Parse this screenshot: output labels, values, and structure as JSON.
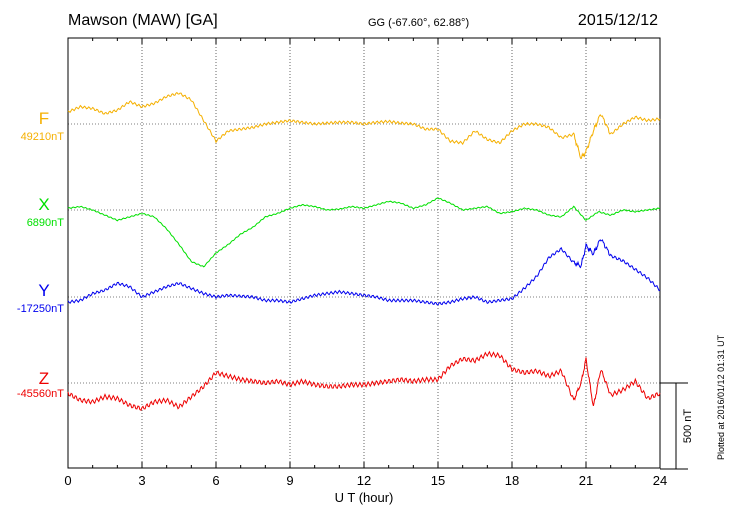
{
  "header": {
    "station": "Mawson (MAW)  [GA]",
    "coords": "GG (-67.60°,  62.88°)",
    "date": "2015/12/12"
  },
  "footer": {
    "plotted": "Plotted at 2016/01/12 01:31  UT"
  },
  "chart_data": {
    "type": "line",
    "xlabel": "U T (hour)",
    "xlim": [
      0,
      24
    ],
    "xticks": [
      0,
      3,
      6,
      9,
      12,
      15,
      18,
      21,
      24
    ],
    "scale_bar": {
      "label": "500 nT",
      "value": 500
    },
    "colors": {
      "F": "#f5b000",
      "X": "#00e000",
      "Y": "#0000ee",
      "Z": "#ee0000"
    },
    "series": [
      {
        "name": "F",
        "baseline_label": "49210nT",
        "baseline": 49210,
        "x": [
          0,
          0.5,
          1,
          1.5,
          2,
          2.5,
          3,
          3.5,
          4,
          4.5,
          5,
          5.5,
          6,
          6.5,
          7,
          7.5,
          8,
          8.5,
          9,
          9.5,
          10,
          10.5,
          11,
          11.5,
          12,
          12.5,
          13,
          13.5,
          14,
          14.5,
          15,
          15.5,
          16,
          16.5,
          17,
          17.5,
          18,
          18.5,
          19,
          19.5,
          20,
          20.5,
          20.8,
          21,
          21.3,
          21.6,
          22,
          22.5,
          23,
          23.5,
          24
        ],
        "y": [
          70,
          100,
          90,
          60,
          80,
          130,
          100,
          120,
          160,
          180,
          140,
          20,
          -100,
          -40,
          -30,
          -20,
          0,
          10,
          20,
          10,
          0,
          5,
          10,
          10,
          0,
          10,
          15,
          5,
          0,
          -30,
          -30,
          -100,
          -110,
          -40,
          -90,
          -110,
          -40,
          0,
          0,
          -20,
          -80,
          -60,
          -200,
          -160,
          -40,
          60,
          -60,
          0,
          40,
          20,
          30
        ]
      },
      {
        "name": "X",
        "baseline_label": "6890nT",
        "baseline": 6890,
        "x": [
          0,
          0.5,
          1,
          1.5,
          2,
          2.5,
          3,
          3.5,
          4,
          4.5,
          5,
          5.5,
          6,
          6.5,
          7,
          7.5,
          8,
          8.5,
          9,
          9.5,
          10,
          10.5,
          11,
          11.5,
          12,
          12.5,
          13,
          13.5,
          14,
          14.5,
          15,
          15.5,
          16,
          16.5,
          17,
          17.5,
          18,
          18.5,
          19,
          19.5,
          20,
          20.5,
          21,
          21.5,
          22,
          22.5,
          23,
          23.5,
          24
        ],
        "y": [
          10,
          20,
          0,
          -30,
          -60,
          -40,
          -20,
          -40,
          -110,
          -200,
          -300,
          -330,
          -250,
          -200,
          -140,
          -100,
          -40,
          -20,
          10,
          30,
          20,
          0,
          5,
          20,
          10,
          30,
          50,
          40,
          10,
          30,
          70,
          40,
          0,
          10,
          20,
          -20,
          -10,
          10,
          0,
          -30,
          -40,
          20,
          -60,
          -10,
          -30,
          0,
          -10,
          0,
          10
        ]
      },
      {
        "name": "Y",
        "baseline_label": "-17250nT",
        "baseline": -17250,
        "x": [
          0,
          0.5,
          1,
          1.5,
          2,
          2.5,
          3,
          3.5,
          4,
          4.5,
          5,
          5.5,
          6,
          6.5,
          7,
          7.5,
          8,
          8.5,
          9,
          9.5,
          10,
          10.5,
          11,
          11.5,
          12,
          12.5,
          13,
          13.5,
          14,
          14.5,
          15,
          15.5,
          16,
          16.5,
          17,
          17.5,
          18,
          18.5,
          19,
          19.5,
          20,
          20.5,
          20.8,
          21,
          21.3,
          21.6,
          22,
          22.5,
          23,
          23.5,
          24
        ],
        "y": [
          -30,
          -20,
          20,
          40,
          80,
          60,
          0,
          30,
          60,
          80,
          50,
          20,
          0,
          10,
          5,
          0,
          -20,
          -20,
          -30,
          -10,
          10,
          20,
          30,
          20,
          10,
          0,
          -20,
          -20,
          -20,
          -30,
          -40,
          -30,
          -10,
          0,
          -30,
          -20,
          -10,
          50,
          120,
          230,
          280,
          200,
          180,
          300,
          250,
          340,
          240,
          210,
          160,
          110,
          40
        ]
      },
      {
        "name": "Z",
        "baseline_label": "-45560nT",
        "baseline": -45560,
        "x": [
          0,
          0.5,
          1,
          1.5,
          2,
          2.5,
          3,
          3.5,
          4,
          4.5,
          5,
          5.5,
          6,
          6.5,
          7,
          7.5,
          8,
          8.5,
          9,
          9.5,
          10,
          10.5,
          11,
          11.5,
          12,
          12.5,
          13,
          13.5,
          14,
          14.5,
          15,
          15.5,
          16,
          16.5,
          17,
          17.5,
          18,
          18.5,
          19,
          19.5,
          20,
          20.5,
          20.8,
          21,
          21.3,
          21.6,
          22,
          22.5,
          23,
          23.5,
          24
        ],
        "y": [
          -60,
          -100,
          -110,
          -80,
          -90,
          -130,
          -150,
          -110,
          -100,
          -140,
          -80,
          -20,
          60,
          40,
          20,
          10,
          0,
          10,
          -10,
          10,
          -10,
          -20,
          -20,
          -10,
          -10,
          0,
          10,
          20,
          10,
          20,
          20,
          100,
          140,
          130,
          170,
          160,
          80,
          60,
          70,
          40,
          70,
          -100,
          0,
          140,
          -140,
          80,
          -70,
          -40,
          10,
          -90,
          -60
        ]
      }
    ]
  }
}
